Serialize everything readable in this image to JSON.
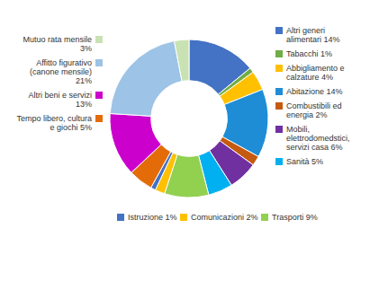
{
  "chart_data": {
    "type": "donut",
    "categories": [
      "Altri generi\nalimentari 14%",
      "Tabacchi 1%",
      "Abbigliamento e\ncalzature 4%",
      "Abitazione 14%",
      "Combustibili ed\nenergia 2%",
      "Mobili,\nelettrodomedstici,\nservizi casa 6%",
      "Sanità 5%",
      "Trasporti 9%",
      "Comunicazioni 2%",
      "Istruzione 1%",
      "Tempo libero, cultura\ne giochi 5%",
      "Altri beni e servizi\n13%",
      "Affitto figurativo\n(canone mensile)\n21%",
      "Mutuo rata mensile\n3%"
    ],
    "values": [
      14,
      1,
      4,
      14,
      2,
      6,
      5,
      9,
      2,
      1,
      5,
      13,
      21,
      3
    ],
    "colors": [
      "#4472C4",
      "#70AD47",
      "#FFC000",
      "#1F8DD6",
      "#C55A11",
      "#7030A0",
      "#00B0F0",
      "#92D050",
      "#FFC000",
      "#4472C4",
      "#E36C09",
      "#CC00CC",
      "#9DC3E6",
      "#C9E2B3"
    ]
  }
}
